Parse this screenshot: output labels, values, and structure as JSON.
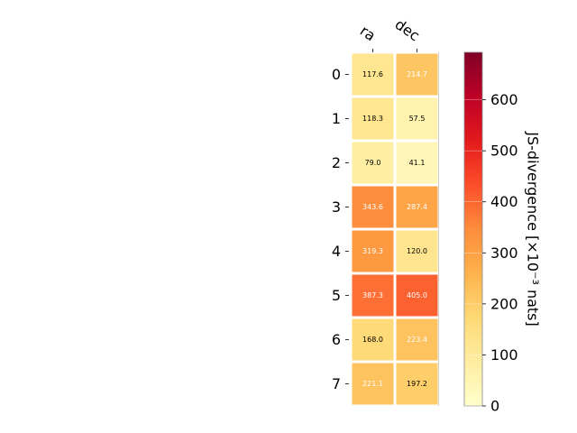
{
  "chart_data": {
    "type": "heatmap",
    "columns": [
      "ra",
      "dec"
    ],
    "rows": [
      "0",
      "1",
      "2",
      "3",
      "4",
      "5",
      "6",
      "7"
    ],
    "values": [
      [
        117.6,
        214.7
      ],
      [
        118.3,
        57.5
      ],
      [
        79.0,
        41.1
      ],
      [
        343.6,
        287.4
      ],
      [
        319.3,
        120.0
      ],
      [
        387.3,
        405.0
      ],
      [
        168.0,
        223.4
      ],
      [
        221.1,
        197.2
      ]
    ],
    "cell_labels": [
      [
        "117.6",
        "214.7"
      ],
      [
        "118.3",
        "57.5"
      ],
      [
        "79.0",
        "41.1"
      ],
      [
        "343.6",
        "287.4"
      ],
      [
        "319.3",
        "120.0"
      ],
      [
        "387.3",
        "405.0"
      ],
      [
        "168.0",
        "223.4"
      ],
      [
        "221.1",
        "197.2"
      ]
    ],
    "colorbar": {
      "label": "JS-divergence [×10⁻³ nats]",
      "range": [
        0,
        693
      ],
      "ticks": [
        0,
        100,
        200,
        300,
        400,
        500,
        600
      ],
      "colormap": "YlOrRd"
    },
    "grid": false
  }
}
